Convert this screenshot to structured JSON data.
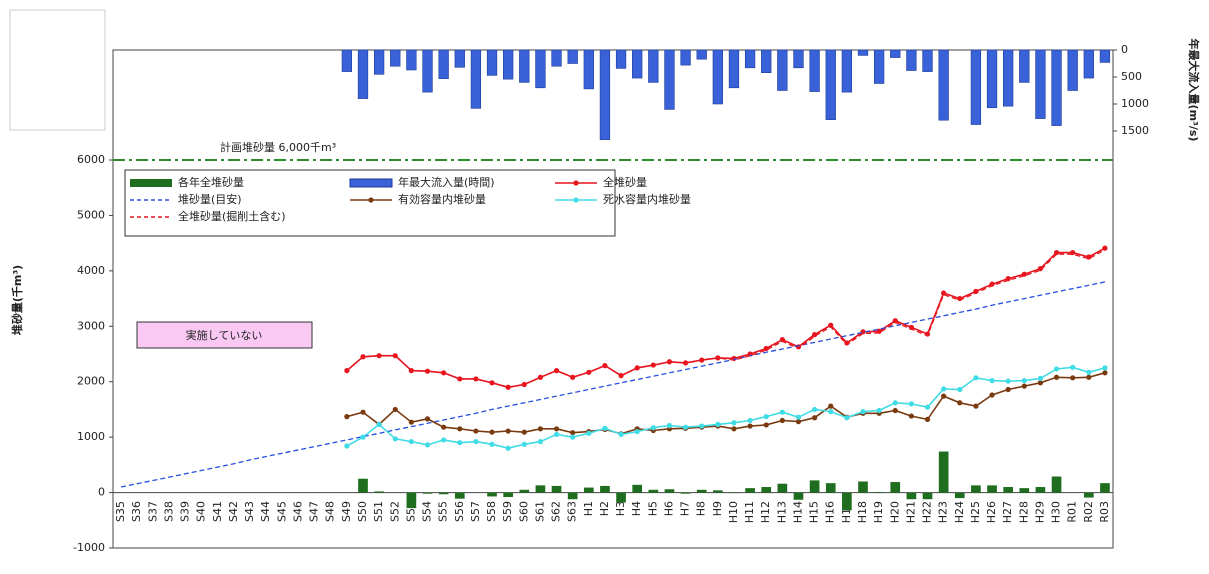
{
  "chart_data": {
    "type": "combo",
    "y_label": "堆砂量(千m³)",
    "y2_label": "年最大流入量(m³/s)",
    "plan_line": {
      "value": 6000,
      "label": "計画堆砂量 6,000千m³",
      "color": "#2e8b2e"
    },
    "note_box": "実施していない",
    "categories": [
      "S35",
      "S36",
      "S37",
      "S38",
      "S39",
      "S40",
      "S41",
      "S42",
      "S43",
      "S44",
      "S45",
      "S46",
      "S47",
      "S48",
      "S49",
      "S50",
      "S51",
      "S52",
      "S53",
      "S54",
      "S55",
      "S56",
      "S57",
      "S58",
      "S59",
      "S60",
      "S61",
      "S62",
      "S63",
      "H1",
      "H2",
      "H3",
      "H4",
      "H5",
      "H6",
      "H7",
      "H8",
      "H9",
      "H10",
      "H11",
      "H12",
      "H13",
      "H14",
      "H15",
      "H16",
      "H17",
      "H18",
      "H19",
      "H20",
      "H21",
      "H22",
      "H23",
      "H24",
      "H25",
      "H26",
      "H27",
      "H28",
      "H29",
      "H30",
      "R01",
      "R02",
      "R03"
    ],
    "ylim": [
      -1000,
      6000
    ],
    "yticks": [
      -1000,
      0,
      1000,
      2000,
      3000,
      4000,
      5000,
      6000
    ],
    "y2lim": [
      0,
      2000
    ],
    "y2ticks": [
      0,
      500,
      1000,
      1500
    ],
    "y2_inverted": true,
    "series": [
      {
        "name": "各年全堆砂量",
        "type": "bar",
        "color": "#1f6e1f",
        "values": [
          null,
          null,
          null,
          null,
          null,
          null,
          null,
          null,
          null,
          null,
          null,
          null,
          null,
          null,
          null,
          250,
          20,
          0,
          -280,
          -20,
          -30,
          -110,
          0,
          -70,
          -80,
          50,
          130,
          120,
          -120,
          90,
          120,
          -180,
          140,
          50,
          60,
          -20,
          50,
          40,
          -10,
          80,
          100,
          160,
          -130,
          220,
          170,
          -320,
          200,
          10,
          190,
          -120,
          -120,
          740,
          -100,
          130,
          130,
          100,
          80,
          100,
          290,
          0,
          -90,
          170
        ]
      },
      {
        "name": "年最大流入量(時間)",
        "type": "bar",
        "axis": "y2",
        "color": "#3a62d8",
        "values": [
          null,
          null,
          null,
          null,
          null,
          null,
          null,
          null,
          null,
          null,
          null,
          null,
          null,
          null,
          400,
          900,
          450,
          300,
          370,
          780,
          530,
          320,
          1080,
          470,
          540,
          600,
          700,
          300,
          250,
          720,
          1660,
          340,
          520,
          600,
          1100,
          280,
          170,
          1000,
          700,
          330,
          420,
          750,
          330,
          770,
          1290,
          780,
          100,
          620,
          140,
          380,
          400,
          1300,
          null,
          1380,
          1070,
          1040,
          600,
          1270,
          1400,
          750,
          520,
          230
        ]
      },
      {
        "name": "全堆砂量",
        "type": "line",
        "marker": true,
        "color": "#e8141e",
        "values": [
          null,
          null,
          null,
          null,
          null,
          null,
          null,
          null,
          null,
          null,
          null,
          null,
          null,
          null,
          2200,
          2450,
          2470,
          2470,
          2200,
          2190,
          2160,
          2050,
          2050,
          1980,
          1900,
          1950,
          2080,
          2200,
          2080,
          2170,
          2290,
          2110,
          2250,
          2300,
          2360,
          2340,
          2390,
          2430,
          2420,
          2500,
          2600,
          2760,
          2630,
          2850,
          3020,
          2700,
          2900,
          2910,
          3100,
          2980,
          2860,
          3600,
          3500,
          3630,
          3760,
          3860,
          3940,
          4040,
          4330,
          4330,
          4250,
          4410
        ]
      },
      {
        "name": "堆砂量(目安)",
        "type": "line",
        "dash": true,
        "color": "#2a4de0",
        "values": [
          100,
          160,
          220,
          280,
          340,
          400,
          460,
          520,
          590,
          650,
          710,
          770,
          830,
          890,
          950,
          1010,
          1070,
          1130,
          1190,
          1250,
          1310,
          1370,
          1430,
          1500,
          1560,
          1620,
          1680,
          1740,
          1800,
          1860,
          1920,
          1980,
          2040,
          2100,
          2160,
          2220,
          2280,
          2340,
          2400,
          2470,
          2530,
          2590,
          2650,
          2710,
          2770,
          2830,
          2890,
          2950,
          3010,
          3070,
          3130,
          3190,
          3250,
          3310,
          3380,
          3440,
          3500,
          3560,
          3620,
          3680,
          3740,
          3800
        ]
      },
      {
        "name": "有効容量内堆砂量",
        "type": "line",
        "marker": true,
        "color": "#7a3a10",
        "values": [
          null,
          null,
          null,
          null,
          null,
          null,
          null,
          null,
          null,
          null,
          null,
          null,
          null,
          null,
          1370,
          1450,
          1230,
          1500,
          1270,
          1330,
          1180,
          1150,
          1110,
          1090,
          1110,
          1090,
          1150,
          1150,
          1080,
          1100,
          1140,
          1060,
          1150,
          1120,
          1150,
          1160,
          1180,
          1200,
          1150,
          1200,
          1220,
          1300,
          1280,
          1350,
          1560,
          1360,
          1430,
          1430,
          1480,
          1380,
          1320,
          1740,
          1620,
          1560,
          1760,
          1860,
          1920,
          1980,
          2080,
          2070,
          2080,
          2160
        ]
      },
      {
        "name": "死水容量内堆砂量",
        "type": "line",
        "marker": true,
        "color": "#40dce6",
        "values": [
          null,
          null,
          null,
          null,
          null,
          null,
          null,
          null,
          null,
          null,
          null,
          null,
          null,
          null,
          840,
          1000,
          1230,
          970,
          920,
          860,
          950,
          900,
          920,
          870,
          800,
          870,
          920,
          1050,
          1000,
          1070,
          1160,
          1050,
          1100,
          1170,
          1210,
          1180,
          1200,
          1230,
          1260,
          1300,
          1370,
          1450,
          1360,
          1500,
          1460,
          1350,
          1460,
          1480,
          1620,
          1600,
          1540,
          1870,
          1860,
          2070,
          2020,
          2010,
          2020,
          2060,
          2230,
          2260,
          2170,
          2250
        ]
      },
      {
        "name": "全堆砂量(掘削土含む)",
        "type": "line",
        "dash": true,
        "color": "#e8141e",
        "values": [
          null,
          null,
          null,
          null,
          null,
          null,
          null,
          null,
          null,
          null,
          null,
          null,
          null,
          null,
          2200,
          2450,
          2470,
          2470,
          2200,
          2190,
          2160,
          2050,
          2050,
          1980,
          1900,
          1950,
          2080,
          2200,
          2080,
          2170,
          2290,
          2110,
          2250,
          2300,
          2360,
          2340,
          2390,
          2430,
          2390,
          2470,
          2570,
          2730,
          2600,
          2820,
          2990,
          2670,
          2870,
          2880,
          3070,
          2950,
          2830,
          3570,
          3470,
          3600,
          3730,
          3830,
          3910,
          4010,
          4300,
          4300,
          4220,
          4380
        ]
      }
    ]
  }
}
